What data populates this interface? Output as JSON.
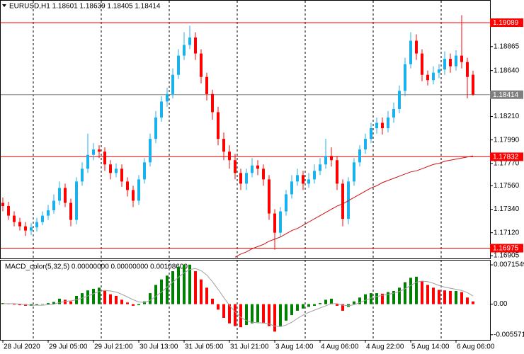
{
  "chart_data": [
    {
      "type": "candlestick",
      "title": "EURUSD,H1 1.18601 1.18639 1.18405 1.18414",
      "categories": [
        "28 Jul 2020",
        null,
        null,
        null,
        null,
        null,
        null,
        null,
        "29 Jul 05:00",
        null,
        null,
        null,
        null,
        null,
        null,
        null,
        "29 Jul 21:00",
        null,
        null,
        null,
        null,
        null,
        null,
        null,
        "30 Jul 13:00",
        null,
        null,
        null,
        null,
        null,
        null,
        null,
        "31 Jul 05:00",
        null,
        null,
        null,
        null,
        null,
        null,
        null,
        "31 Jul 21:00",
        null,
        null,
        null,
        null,
        null,
        null,
        null,
        "3 Aug 14:00",
        null,
        null,
        null,
        null,
        null,
        null,
        null,
        "4 Aug 06:00",
        null,
        null,
        null,
        null,
        null,
        null,
        null,
        "4 Aug 22:00",
        null,
        null,
        null,
        null,
        null,
        null,
        null,
        "5 Aug 14:00",
        null,
        null,
        null,
        null,
        null,
        null,
        null,
        "6 Aug 06:00",
        null,
        null,
        null
      ],
      "open": [
        1.174,
        1.1737,
        1.1728,
        1.1722,
        1.1718,
        1.1714,
        1.1717,
        1.1722,
        1.1728,
        1.1733,
        1.1742,
        1.1754,
        1.174,
        1.1724,
        1.176,
        1.1772,
        1.1785,
        1.179,
        1.1788,
        1.1776,
        1.1768,
        1.1772,
        1.176,
        1.1752,
        1.1742,
        1.1762,
        1.1778,
        1.18,
        1.182,
        1.1835,
        1.1842,
        1.186,
        1.1878,
        1.1888,
        1.1895,
        1.188,
        1.1858,
        1.1842,
        1.1825,
        1.18,
        1.1788,
        1.178,
        1.1768,
        1.1758,
        1.1768,
        1.1775,
        1.1772,
        1.1762,
        1.173,
        1.1712,
        1.1732,
        1.1748,
        1.176,
        1.1766,
        1.1758,
        1.1762,
        1.177,
        1.1776,
        1.1784,
        1.178,
        1.1758,
        1.1725,
        1.176,
        1.1778,
        1.179,
        1.18,
        1.181,
        1.1815,
        1.181,
        1.182,
        1.1828,
        1.1845,
        1.187,
        1.1892,
        1.188,
        1.186,
        1.1855,
        1.1862,
        1.1865,
        1.1875,
        1.1868,
        1.1878,
        1.1872,
        1.18601
      ],
      "high": [
        1.1745,
        1.1741,
        1.1732,
        1.1726,
        1.1722,
        1.1721,
        1.1726,
        1.1732,
        1.1738,
        1.1748,
        1.176,
        1.1758,
        1.1744,
        1.1764,
        1.1778,
        1.1805,
        1.1796,
        1.1794,
        1.1792,
        1.178,
        1.1777,
        1.1776,
        1.1764,
        1.1756,
        1.1766,
        1.1782,
        1.1805,
        1.1826,
        1.184,
        1.1848,
        1.1866,
        1.1884,
        1.19,
        1.1906,
        1.19,
        1.1884,
        1.1862,
        1.1846,
        1.183,
        1.1806,
        1.1794,
        1.1786,
        1.1772,
        1.1772,
        1.1782,
        1.178,
        1.1776,
        1.1766,
        1.1734,
        1.1736,
        1.1752,
        1.1766,
        1.1772,
        1.177,
        1.1768,
        1.1776,
        1.1782,
        1.18,
        1.1792,
        1.1784,
        1.1762,
        1.1764,
        1.1782,
        1.1794,
        1.1805,
        1.1815,
        1.182,
        1.182,
        1.1826,
        1.1834,
        1.185,
        1.1876,
        1.19,
        1.1898,
        1.1884,
        1.1864,
        1.1868,
        1.187,
        1.1882,
        1.188,
        1.1883,
        1.1916,
        1.1876,
        1.18639
      ],
      "low": [
        1.1732,
        1.1724,
        1.1718,
        1.1714,
        1.1709,
        1.171,
        1.1713,
        1.1719,
        1.1724,
        1.173,
        1.1738,
        1.1736,
        1.1718,
        1.172,
        1.1756,
        1.1768,
        1.178,
        1.1782,
        1.177,
        1.1762,
        1.1764,
        1.1755,
        1.1746,
        1.1736,
        1.1738,
        1.1758,
        1.1774,
        1.1796,
        1.1816,
        1.183,
        1.1838,
        1.1856,
        1.1874,
        1.1884,
        1.1874,
        1.1852,
        1.1836,
        1.1818,
        1.1794,
        1.178,
        1.1772,
        1.1762,
        1.1752,
        1.1752,
        1.1764,
        1.1766,
        1.1756,
        1.1724,
        1.1696,
        1.1708,
        1.1728,
        1.1744,
        1.1756,
        1.1752,
        1.1754,
        1.1758,
        1.1766,
        1.1772,
        1.1774,
        1.1752,
        1.1718,
        1.172,
        1.1756,
        1.1774,
        1.1786,
        1.1796,
        1.1805,
        1.1804,
        1.1806,
        1.1815,
        1.1824,
        1.184,
        1.1866,
        1.1874,
        1.1854,
        1.185,
        1.1851,
        1.1857,
        1.186,
        1.1862,
        1.1864,
        1.1866,
        1.1838,
        1.18405
      ],
      "close": [
        1.1737,
        1.1728,
        1.1722,
        1.1718,
        1.1714,
        1.1717,
        1.1722,
        1.1728,
        1.1733,
        1.1742,
        1.1754,
        1.174,
        1.1724,
        1.176,
        1.1772,
        1.1785,
        1.179,
        1.1788,
        1.1776,
        1.1768,
        1.1772,
        1.176,
        1.1752,
        1.1742,
        1.1762,
        1.1778,
        1.18,
        1.182,
        1.1835,
        1.1842,
        1.186,
        1.1878,
        1.1888,
        1.1895,
        1.188,
        1.1858,
        1.1842,
        1.1825,
        1.18,
        1.1788,
        1.178,
        1.1768,
        1.1758,
        1.1768,
        1.1775,
        1.1772,
        1.1762,
        1.173,
        1.1712,
        1.1732,
        1.1748,
        1.176,
        1.1766,
        1.1758,
        1.1762,
        1.177,
        1.1776,
        1.1784,
        1.178,
        1.1758,
        1.1725,
        1.176,
        1.1778,
        1.179,
        1.18,
        1.181,
        1.1815,
        1.181,
        1.182,
        1.1828,
        1.1845,
        1.187,
        1.1892,
        1.188,
        1.186,
        1.1855,
        1.1862,
        1.1865,
        1.1875,
        1.1868,
        1.1878,
        1.1872,
        1.1858,
        1.18414
      ],
      "up_color": "#1ab2ec",
      "down_color": "#ff0000",
      "ma": {
        "color": "#d01010",
        "values": [
          null,
          null,
          null,
          null,
          null,
          null,
          null,
          null,
          null,
          null,
          null,
          null,
          null,
          null,
          null,
          null,
          null,
          null,
          null,
          null,
          null,
          null,
          null,
          null,
          null,
          null,
          null,
          null,
          null,
          null,
          null,
          null,
          null,
          null,
          null,
          null,
          null,
          null,
          null,
          null,
          null,
          1.1689,
          1.1692,
          1.1694,
          1.1697,
          1.1699,
          1.1701,
          1.1704,
          1.1706,
          1.1708,
          1.1711,
          1.1714,
          1.1716,
          1.1719,
          1.1722,
          1.1725,
          1.1728,
          1.1731,
          1.1734,
          1.1737,
          1.1739,
          1.1742,
          1.1745,
          1.1748,
          1.1751,
          1.1754,
          1.1756,
          1.1759,
          1.1761,
          1.1763,
          1.1765,
          1.1767,
          1.1769,
          1.177,
          1.1772,
          1.1774,
          1.1776,
          1.1777,
          1.1779,
          1.178,
          1.1781,
          1.1782,
          1.1783,
          1.1784
        ]
      },
      "hlines": [
        {
          "value": 1.19089,
          "color": "#ff0000"
        },
        {
          "value": 1.18414,
          "color": "#808080"
        },
        {
          "value": 1.17832,
          "color": "#ff0000"
        },
        {
          "value": 1.16975,
          "color": "#ff0000"
        }
      ],
      "ylim": [
        1.16879,
        1.19295
      ],
      "yticks": [
        1.18865,
        {
          "value": 1.1864,
          "label": "1.18640"
        },
        {
          "value": 1.1821,
          "label": "1.18210"
        },
        {
          "value": 1.1799,
          "label": "1.17990"
        },
        {
          "value": 1.1777,
          "label": "1.17770"
        },
        {
          "value": 1.1756,
          "label": "1.17560"
        },
        {
          "value": 1.1734,
          "label": "1.17340"
        },
        {
          "value": 1.1712,
          "label": "1.17120"
        },
        1.16905
      ]
    },
    {
      "type": "bar",
      "title": "MACD_color(5,32,5) 0.00000000 0.00000000 0.00108600",
      "values": [
        0.0002,
        0.0001,
        -0.0001,
        -0.0002,
        -0.0003,
        -0.0003,
        -0.0002,
        0,
        0.0002,
        0.0004,
        0.001,
        0.0008,
        0.0005,
        0.0015,
        0.002,
        0.0025,
        0.0028,
        0.003,
        0.0025,
        0.0018,
        0.0015,
        0.0008,
        0.0003,
        -0.0003,
        -0.0002,
        0.0005,
        0.002,
        0.0035,
        0.0045,
        0.0052,
        0.006,
        0.0068,
        0.0072,
        0.0072,
        0.006,
        0.0045,
        0.003,
        0.001,
        -0.001,
        -0.0025,
        -0.0035,
        -0.004,
        -0.0042,
        -0.0038,
        -0.0035,
        -0.0033,
        -0.0035,
        -0.004,
        -0.005,
        -0.004,
        -0.003,
        -0.002,
        -0.0012,
        -0.0008,
        -0.0005,
        -0.0003,
        0.0002,
        0.0008,
        0.001,
        -0.0003,
        -0.0012,
        -0.0005,
        0.0005,
        0.0012,
        0.0018,
        0.002,
        0.002,
        0.0019,
        0.0022,
        0.0024,
        0.003,
        0.004,
        0.0048,
        0.005,
        0.0042,
        0.0035,
        0.003,
        0.0026,
        0.0025,
        0.0024,
        0.0024,
        0.0022,
        0.0012,
        0.0005
      ],
      "up_color": "#008000",
      "down_color": "#ff0000",
      "signal": {
        "color": "#a0a0a0",
        "values": [
          0.0001,
          0.0001,
          0.0001,
          0,
          -0.0001,
          -0.0002,
          -0.0002,
          -0.0002,
          -0.0001,
          0,
          0.0003,
          0.0005,
          0.0006,
          0.0008,
          0.0011,
          0.0015,
          0.0019,
          0.0023,
          0.0025,
          0.0024,
          0.0022,
          0.0018,
          0.0013,
          0.0008,
          0.0004,
          0.0003,
          0.0007,
          0.0014,
          0.0022,
          0.0031,
          0.004,
          0.0049,
          0.0057,
          0.0063,
          0.0065,
          0.0061,
          0.0053,
          0.0041,
          0.0027,
          0.0012,
          -0.0002,
          -0.0014,
          -0.0024,
          -0.003,
          -0.0033,
          -0.0034,
          -0.0034,
          -0.0036,
          -0.004,
          -0.0041,
          -0.0038,
          -0.0033,
          -0.0026,
          -0.002,
          -0.0015,
          -0.0011,
          -0.0007,
          -0.0003,
          0.0001,
          0.0001,
          -0.0002,
          -0.0003,
          -0.0001,
          0.0003,
          0.0007,
          0.0011,
          0.0014,
          0.0016,
          0.0018,
          0.002,
          0.0023,
          0.0028,
          0.0034,
          0.004,
          0.0042,
          0.0041,
          0.0038,
          0.0034,
          0.0031,
          0.0029,
          0.0027,
          0.0025,
          0.0021,
          0.0015
        ]
      },
      "ylim": [
        -0.0065,
        0.00807
      ],
      "yticks": [
        0.0071549,
        {
          "value": 0,
          "label": "0.00"
        },
        -0.005571
      ]
    }
  ]
}
